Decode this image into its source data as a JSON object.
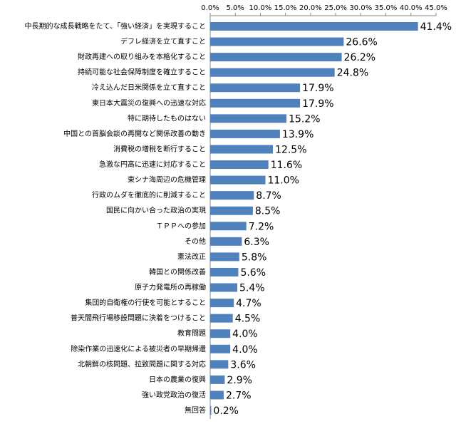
{
  "chart_data": {
    "type": "bar",
    "orientation": "horizontal",
    "categories": [
      "中長期的な成長戦略をたて、「強い経済」を実現すること",
      "デフレ経済を立て直すこと",
      "財政再建への取り組みを本格化すること",
      "持続可能な社会保障制度を確立すること",
      "冷え込んだ日米関係を立て直すこと",
      "東日本大震災の復興への迅速な対応",
      "特に期待したものはない",
      "中国との首脳会談の再開など関係改善の動き",
      "消費税の増税を断行すること",
      "急激な円高に迅速に対応すること",
      "東シナ海周辺の危機管理",
      "行政のムダを徹底的に削減すること",
      "国民に向かい合った政治の実現",
      "ＴＰＰへの参加",
      "その他",
      "憲法改正",
      "韓国との関係改善",
      "原子力発電所の再稼働",
      "集団的自衛権の行使を可能とすること",
      "普天間飛行場移設問題に決着をつけること",
      "教育問題",
      "除染作業の迅速化による被災者の早期帰還",
      "北朝鮮の核問題、拉致問題に関する対応",
      "日本の農業の復興",
      "強い政党政治の復活",
      "無回答"
    ],
    "values": [
      41.4,
      26.6,
      26.2,
      24.8,
      17.9,
      17.9,
      15.2,
      13.9,
      12.5,
      11.6,
      11.0,
      8.7,
      8.5,
      7.2,
      6.3,
      5.8,
      5.6,
      5.4,
      4.7,
      4.5,
      4.0,
      4.0,
      3.6,
      2.9,
      2.7,
      0.2
    ],
    "value_labels": [
      "41.4%",
      "26.6%",
      "26.2%",
      "24.8%",
      "17.9%",
      "17.9%",
      "15.2%",
      "13.9%",
      "12.5%",
      "11.6%",
      "11.0%",
      "8.7%",
      "8.5%",
      "7.2%",
      "6.3%",
      "5.8%",
      "5.6%",
      "5.4%",
      "4.7%",
      "4.5%",
      "4.0%",
      "4.0%",
      "3.6%",
      "2.9%",
      "2.7%",
      "0.2%"
    ],
    "color": "#4f81bd",
    "xlim": [
      0,
      45
    ],
    "xticks": [
      {
        "value": 0,
        "label": "0.0%"
      },
      {
        "value": 5,
        "label": "5.0%"
      },
      {
        "value": 10,
        "label": "10.0%"
      },
      {
        "value": 15,
        "label": "15.0%"
      },
      {
        "value": 20,
        "label": "20.0%"
      },
      {
        "value": 25,
        "label": "25.0%"
      },
      {
        "value": 30,
        "label": "30.0%"
      },
      {
        "value": 35,
        "label": "35.0%"
      },
      {
        "value": 40,
        "label": "40.0%"
      },
      {
        "value": 45,
        "label": "45.0%"
      }
    ],
    "grid": false
  }
}
